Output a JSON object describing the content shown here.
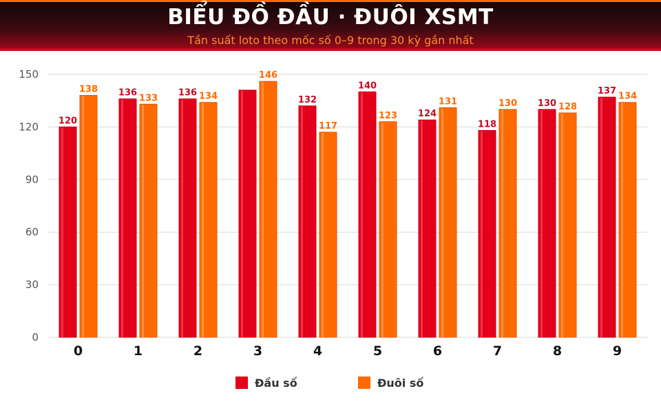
{
  "header": {
    "title": "BIỂU ĐỒ ĐẦU · ĐUÔI XSMT",
    "subtitle": "Tần suất loto theo mốc số 0–9 trong 30 kỳ gần nhất"
  },
  "colors": {
    "series_dau": "#e3001b",
    "series_duoi": "#ff6a00",
    "grid": "#d9d9d9",
    "axis_text": "#555555"
  },
  "legend": {
    "dau_label": "Đầu số",
    "duoi_label": "Đuôi số",
    "placement": "bottom"
  },
  "chart_data": {
    "type": "bar",
    "categories": [
      "0",
      "1",
      "2",
      "3",
      "4",
      "5",
      "6",
      "7",
      "8",
      "9"
    ],
    "series": [
      {
        "name": "Đầu số",
        "values": [
          120,
          136,
          136,
          141,
          132,
          140,
          124,
          118,
          130,
          137
        ]
      },
      {
        "name": "Đuôi số",
        "values": [
          138,
          133,
          134,
          146,
          117,
          123,
          131,
          130,
          128,
          134
        ]
      }
    ],
    "data_labels": [
      [
        "120",
        "136",
        "136",
        "",
        "132",
        "140",
        "124",
        "118",
        "130",
        "137"
      ],
      [
        "138",
        "133",
        "134",
        "146",
        "117",
        "123",
        "131",
        "130",
        "128",
        "134"
      ]
    ],
    "yticks": [
      "0",
      "30",
      "60",
      "90",
      "120",
      "150"
    ],
    "ylim": [
      0,
      150
    ],
    "grid": true,
    "title": "BIỂU ĐỒ ĐẦU · ĐUÔI XSMT",
    "subtitle": "Tần suất loto theo mốc số 0–9 trong 30 kỳ gần nhất"
  }
}
